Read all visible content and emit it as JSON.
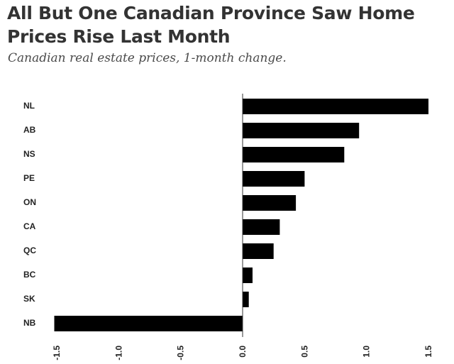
{
  "title": "All But One Canadian Province Saw Home Prices Rise Last Month",
  "subtitle": "Canadian real estate prices, 1-month change.",
  "colors": {
    "bar": "#000000",
    "axis": "#333333",
    "title": "#333333",
    "subtitle": "#4a4a4a"
  },
  "chart_data": {
    "type": "bar",
    "orientation": "horizontal",
    "title": "All But One Canadian Province Saw Home Prices Rise Last Month",
    "subtitle": "Canadian real estate prices, 1-month change.",
    "xlabel": "",
    "ylabel": "",
    "categories": [
      "NL",
      "AB",
      "NS",
      "PE",
      "ON",
      "CA",
      "QC",
      "BC",
      "SK",
      "NB"
    ],
    "values": [
      1.5,
      0.94,
      0.82,
      0.5,
      0.43,
      0.3,
      0.25,
      0.08,
      0.05,
      -1.52
    ],
    "xlim": [
      -1.5,
      1.5
    ],
    "xticks": [
      "-1.5",
      "-1.0",
      "-0.5",
      "0.0",
      "0.5",
      "1.0",
      "1.5"
    ],
    "grid": false,
    "legend": "none"
  }
}
